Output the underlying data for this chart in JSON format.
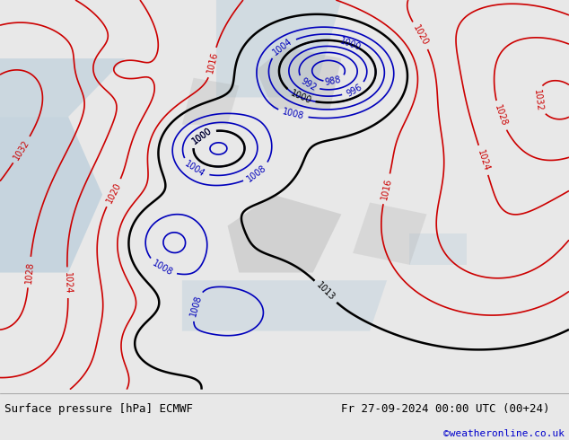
{
  "title_left": "Surface pressure [hPa] ECMWF",
  "title_right": "Fr 27-09-2024 00:00 UTC (00+24)",
  "credit": "©weatheronline.co.uk",
  "land_color": "#c8dcc8",
  "ocean_color": "#b0c8d8",
  "blue_contour_color": "#0000bb",
  "red_contour_color": "#cc0000",
  "black_contour_color": "#000000",
  "footer_bg": "#e8e8e8",
  "label_fontsize": 9,
  "credit_fontsize": 8,
  "credit_color": "#0000cc",
  "contour_label_fontsize": 7,
  "contour_linewidth": 1.2,
  "black_linewidth": 1.8
}
